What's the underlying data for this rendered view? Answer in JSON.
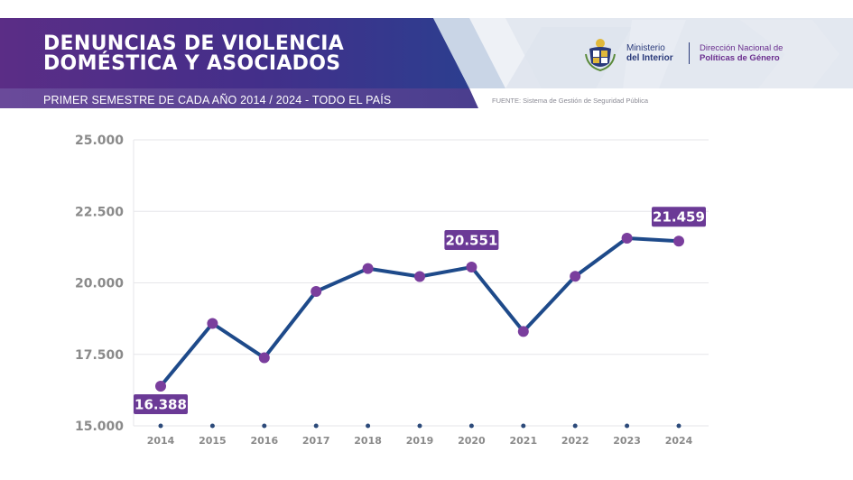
{
  "header": {
    "title_line1": "DENUNCIAS DE VIOLENCIA",
    "title_line2": "DOMÉSTICA Y ASOCIADOS",
    "subtitle": "PRIMER SEMESTRE DE CADA AÑO 2014 / 2024 - TODO EL PAÍS",
    "source": "FUENTE: Sistema de Gestión de Seguridad Pública"
  },
  "logos": {
    "seal_icon": "uruguay-coat-of-arms-icon",
    "ministry_line1": "Ministerio",
    "ministry_line2": "del Interior",
    "direction_line1": "Dirección Nacional de",
    "direction_line2": "Políticas de Género"
  },
  "colors": {
    "banner_purple": "#5b2d86",
    "banner_blue": "#2c3e8f",
    "line": "#1e4a8a",
    "marker": "#7a3e9d",
    "label_bg": "#6b3a96"
  },
  "chart_data": {
    "type": "line",
    "title": "DENUNCIAS DE VIOLENCIA DOMÉSTICA Y ASOCIADOS",
    "subtitle": "PRIMER SEMESTRE DE CADA AÑO 2014 / 2024 - TODO EL PAÍS",
    "categories": [
      "2014",
      "2015",
      "2016",
      "2017",
      "2018",
      "2019",
      "2020",
      "2021",
      "2022",
      "2023",
      "2024"
    ],
    "values": [
      16388,
      18580,
      17380,
      19700,
      20500,
      20220,
      20551,
      18300,
      20230,
      21560,
      21459
    ],
    "ylim": [
      15000,
      25000
    ],
    "yticks": [
      15000,
      17500,
      20000,
      22500,
      25000
    ],
    "ytick_labels": [
      "15.000",
      "17.500",
      "20.000",
      "22.500",
      "25.000"
    ],
    "data_labels": [
      {
        "index": 0,
        "text": "16.388"
      },
      {
        "index": 6,
        "text": "20.551"
      },
      {
        "index": 10,
        "text": "21.459"
      }
    ],
    "grid": true,
    "legend": "none"
  }
}
